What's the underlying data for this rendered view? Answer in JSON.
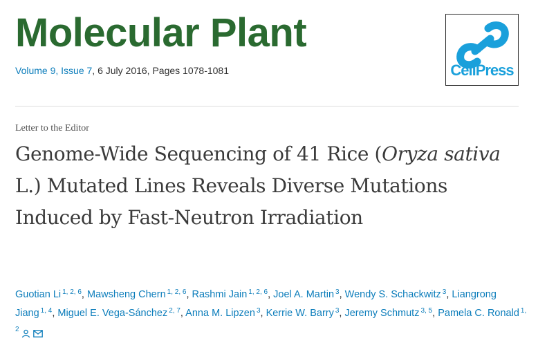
{
  "journal": {
    "title": "Molecular Plant",
    "volume_issue_link": "Volume 9, Issue 7",
    "date_pages": ", 6 July 2016, Pages 1078-1081"
  },
  "publisher": {
    "logo_text": "CellPress"
  },
  "article": {
    "type": "Letter to the Editor",
    "title_part1": "Genome-Wide Sequencing of 41 Rice (",
    "title_italic1": "Oryza sativa",
    "title_part2": " L.) Mutated Lines Reveals Diverse Mutations Induced by Fast-Neutron Irradiation"
  },
  "authors": [
    {
      "name": "Guotian Li",
      "affiliations": "1, 2, 6"
    },
    {
      "name": "Mawsheng Chern",
      "affiliations": "1, 2, 6"
    },
    {
      "name": "Rashmi Jain",
      "affiliations": "1, 2, 6"
    },
    {
      "name": "Joel A. Martin",
      "affiliations": "3"
    },
    {
      "name": "Wendy S. Schackwitz",
      "affiliations": "3"
    },
    {
      "name": "Liangrong Jiang",
      "affiliations": "1, 4"
    },
    {
      "name": "Miguel E. Vega-Sánchez",
      "affiliations": "2, 7"
    },
    {
      "name": "Anna M. Lipzen",
      "affiliations": "3"
    },
    {
      "name": "Kerrie W. Barry",
      "affiliations": "3"
    },
    {
      "name": "Jeremy Schmutz",
      "affiliations": "3, 5"
    },
    {
      "name": "Pamela C. Ronald",
      "affiliations": "1, 2"
    }
  ],
  "separator": ", ",
  "icons": {
    "person": "person-icon",
    "email": "envelope-icon"
  },
  "colors": {
    "journal_green": "#2a6a30",
    "link_blue": "#0c7dbb",
    "cellpress_blue": "#1aa0db"
  }
}
